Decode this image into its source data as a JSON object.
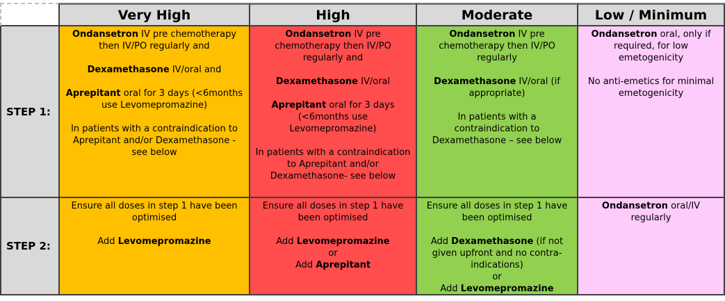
{
  "palette": {
    "border_dark": "#3f3f3f",
    "header_bg": "#d9d9d9",
    "label_bg": "#d9d9d9"
  },
  "columns": [
    {
      "id": "very_high",
      "label": "Very High",
      "bg": "#ffc000"
    },
    {
      "id": "high",
      "label": "High",
      "bg": "#ff4d4d"
    },
    {
      "id": "moderate",
      "label": "Moderate",
      "bg": "#92d050"
    },
    {
      "id": "low_minimum",
      "label": "Low / Minimum",
      "bg": "#fdccfb"
    }
  ],
  "rows": [
    {
      "id": "step1",
      "label": "STEP 1:"
    },
    {
      "id": "step2",
      "label": "STEP 2:"
    }
  ],
  "cells": {
    "step1": {
      "very_high": [
        [
          {
            "t": "Ondansetron",
            "b": true
          },
          {
            "t": " IV pre chemotherapy then IV/PO regularly and",
            "b": false
          }
        ],
        [],
        [
          {
            "t": "Dexamethasone",
            "b": true
          },
          {
            "t": " IV/oral  and",
            "b": false
          }
        ],
        [],
        [
          {
            "t": "Aprepitant",
            "b": true
          },
          {
            "t": " oral for 3 days (<6months use Levomepromazine)",
            "b": false
          }
        ],
        [],
        [
          {
            "t": "In patients with a contraindication to Aprepitant and/or Dexamethasone - see below",
            "b": false
          }
        ]
      ],
      "high": [
        [
          {
            "t": "Ondansetron",
            "b": true
          },
          {
            "t": " IV pre chemotherapy then IV/PO regularly and",
            "b": false
          }
        ],
        [],
        [
          {
            "t": "Dexamethasone",
            "b": true
          },
          {
            "t": " IV/oral",
            "b": false
          }
        ],
        [],
        [
          {
            "t": "Aprepitant",
            "b": true
          },
          {
            "t": " oral for 3 days (<6months use Levomepromazine)",
            "b": false
          }
        ],
        [],
        [
          {
            "t": "In patients with a contraindication to Aprepitant and/or Dexamethasone- see below",
            "b": false
          }
        ]
      ],
      "moderate": [
        [
          {
            "t": "Ondansetron",
            "b": true
          },
          {
            "t": " IV pre chemotherapy then IV/PO regularly",
            "b": false
          }
        ],
        [],
        [
          {
            "t": "Dexamethasone",
            "b": true
          },
          {
            "t": " IV/oral (if appropriate)",
            "b": false
          }
        ],
        [],
        [
          {
            "t": "In patients with a contraindication to Dexamethasone – see below",
            "b": false
          }
        ]
      ],
      "low_minimum": [
        [
          {
            "t": "Ondansetron",
            "b": true
          },
          {
            "t": " oral, only if required, for low emetogenicity",
            "b": false
          }
        ],
        [],
        [
          {
            "t": "No anti-emetics for minimal emetogenicity",
            "b": false
          }
        ]
      ]
    },
    "step2": {
      "very_high": [
        [
          {
            "t": "Ensure all doses in step 1 have been optimised",
            "b": false
          }
        ],
        [],
        [
          {
            "t": "Add ",
            "b": false
          },
          {
            "t": "Levomepromazine",
            "b": true
          }
        ]
      ],
      "high": [
        [
          {
            "t": "Ensure all doses in step 1 have been optimised",
            "b": false
          }
        ],
        [],
        [
          {
            "t": "Add ",
            "b": false
          },
          {
            "t": "Levomepromazine",
            "b": true
          }
        ],
        [
          {
            "t": "or",
            "b": false
          }
        ],
        [
          {
            "t": "Add ",
            "b": false
          },
          {
            "t": "Aprepitant",
            "b": true
          }
        ]
      ],
      "moderate": [
        [
          {
            "t": "Ensure all doses in step 1 have been optimised",
            "b": false
          }
        ],
        [],
        [
          {
            "t": "Add ",
            "b": false
          },
          {
            "t": "Dexamethasone",
            "b": true
          },
          {
            "t": " (if not given upfront and no contra-indications)",
            "b": false
          }
        ],
        [
          {
            "t": "or",
            "b": false
          }
        ],
        [
          {
            "t": "Add ",
            "b": false
          },
          {
            "t": "Levomepromazine",
            "b": true
          }
        ]
      ],
      "low_minimum": [
        [
          {
            "t": "Ondansetron",
            "b": true
          },
          {
            "t": " oral/IV regularly",
            "b": false
          }
        ]
      ]
    }
  }
}
